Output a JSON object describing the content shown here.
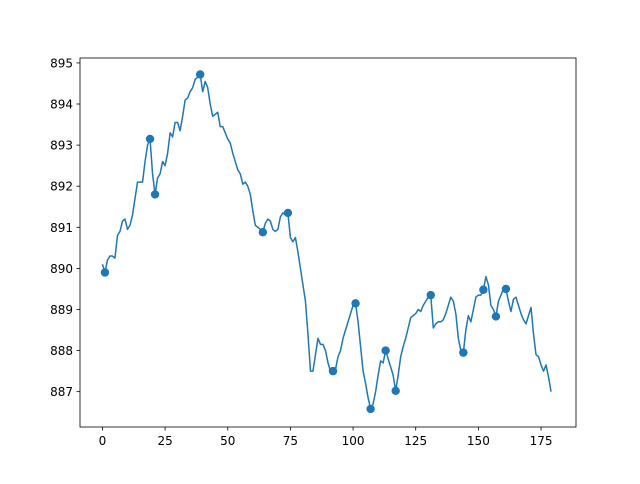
{
  "chart_data": {
    "type": "line",
    "xlim": [
      -8.95,
      188.95
    ],
    "xticks": [
      0,
      25,
      50,
      75,
      100,
      125,
      150,
      175
    ],
    "ylim": [
      886.14,
      895.12
    ],
    "yticks": [
      887,
      888,
      889,
      890,
      891,
      892,
      893,
      894,
      895
    ],
    "grid": false,
    "series": [
      {
        "color": "#1f77b4",
        "mode": "line",
        "x": [
          0,
          1,
          2,
          3,
          4,
          5,
          6,
          7,
          8,
          9,
          10,
          11,
          12,
          13,
          14,
          15,
          16,
          17,
          18,
          19,
          20,
          21,
          22,
          23,
          24,
          25,
          26,
          27,
          28,
          29,
          30,
          31,
          32,
          33,
          34,
          35,
          36,
          37,
          38,
          39,
          40,
          41,
          42,
          43,
          44,
          45,
          46,
          47,
          48,
          49,
          50,
          51,
          52,
          53,
          54,
          55,
          56,
          57,
          58,
          59,
          60,
          61,
          62,
          63,
          64,
          65,
          66,
          67,
          68,
          69,
          70,
          71,
          72,
          73,
          74,
          75,
          76,
          77,
          78,
          79,
          80,
          81,
          82,
          83,
          84,
          85,
          86,
          87,
          88,
          89,
          90,
          91,
          92,
          93,
          94,
          95,
          96,
          97,
          98,
          99,
          100,
          101,
          102,
          103,
          104,
          105,
          106,
          107,
          108,
          109,
          110,
          111,
          112,
          113,
          114,
          115,
          116,
          117,
          118,
          119,
          120,
          121,
          122,
          123,
          124,
          125,
          126,
          127,
          128,
          129,
          130,
          131,
          132,
          133,
          134,
          135,
          136,
          137,
          138,
          139,
          140,
          141,
          142,
          143,
          144,
          145,
          146,
          147,
          148,
          149,
          150,
          151,
          152,
          153,
          154,
          155,
          156,
          157,
          158,
          159,
          160,
          161,
          162,
          163,
          164,
          165,
          166,
          167,
          168,
          169,
          170,
          171,
          172,
          173,
          174,
          175,
          176,
          177,
          178,
          179
        ],
        "values": [
          890.1,
          889.9,
          890.2,
          890.3,
          890.3,
          890.25,
          890.8,
          890.9,
          891.15,
          891.2,
          890.95,
          891.05,
          891.3,
          891.7,
          892.1,
          892.1,
          892.1,
          892.6,
          893.0,
          893.15,
          892.3,
          891.8,
          892.2,
          892.3,
          892.6,
          892.5,
          892.8,
          893.3,
          893.2,
          893.55,
          893.55,
          893.35,
          893.7,
          894.1,
          894.15,
          894.3,
          894.4,
          894.6,
          894.65,
          894.72,
          894.3,
          894.55,
          894.4,
          894.0,
          893.7,
          893.75,
          893.8,
          893.45,
          893.45,
          893.3,
          893.15,
          893.05,
          892.8,
          892.6,
          892.4,
          892.3,
          892.05,
          892.1,
          892.0,
          891.8,
          891.4,
          891.05,
          891.0,
          890.95,
          890.88,
          891.1,
          891.2,
          891.15,
          890.95,
          890.9,
          890.95,
          891.25,
          891.35,
          891.3,
          891.35,
          890.75,
          890.65,
          890.75,
          890.4,
          890.0,
          889.6,
          889.2,
          888.4,
          887.5,
          887.5,
          887.9,
          888.3,
          888.15,
          888.15,
          888.0,
          887.7,
          887.5,
          887.5,
          887.55,
          887.85,
          888.0,
          888.3,
          888.5,
          888.7,
          888.9,
          889.1,
          889.15,
          888.7,
          888.1,
          887.5,
          887.2,
          886.85,
          886.58,
          886.7,
          887.0,
          887.4,
          887.75,
          887.7,
          888.0,
          887.8,
          887.6,
          887.4,
          887.02,
          887.4,
          887.85,
          888.1,
          888.3,
          888.55,
          888.8,
          888.85,
          888.9,
          889.0,
          888.95,
          889.1,
          889.2,
          889.3,
          889.35,
          888.55,
          888.65,
          888.7,
          888.7,
          888.75,
          888.9,
          889.1,
          889.3,
          889.2,
          888.9,
          888.3,
          888.0,
          887.95,
          888.5,
          888.85,
          888.7,
          889.0,
          889.3,
          889.35,
          889.35,
          889.48,
          889.8,
          889.6,
          889.1,
          889.0,
          888.83,
          889.2,
          889.35,
          889.5,
          889.5,
          889.2,
          888.95,
          889.25,
          889.3,
          889.1,
          888.9,
          888.75,
          888.65,
          888.85,
          889.05,
          888.4,
          887.9,
          887.85,
          887.65,
          887.5,
          887.65,
          887.35,
          887.0
        ]
      },
      {
        "color": "#1f77b4",
        "mode": "markers",
        "x": [
          1,
          19,
          21,
          39,
          64,
          74,
          92,
          101,
          107,
          113,
          117,
          131,
          144,
          152,
          157,
          161
        ],
        "values": [
          889.9,
          893.15,
          891.8,
          894.72,
          890.88,
          891.35,
          887.5,
          889.15,
          886.58,
          888.0,
          887.02,
          889.35,
          887.95,
          889.48,
          888.83,
          889.5
        ]
      }
    ]
  }
}
